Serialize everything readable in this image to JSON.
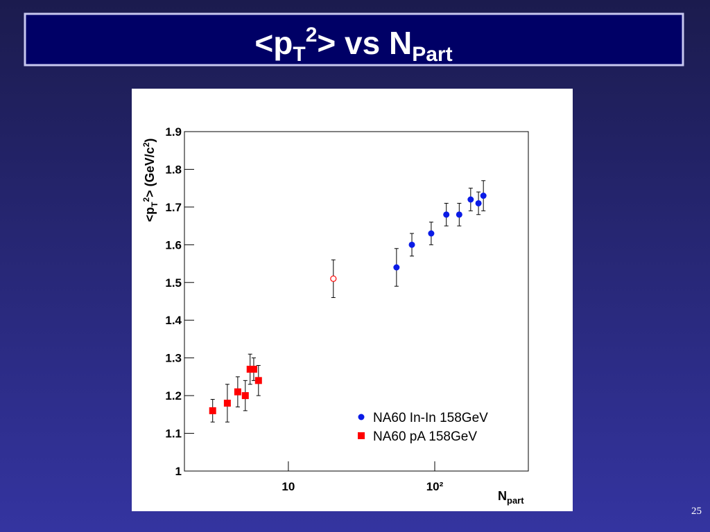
{
  "slide": {
    "title_parts": [
      "<p",
      "T",
      "2",
      "> vs N",
      "Part"
    ],
    "page_number": "25"
  },
  "chart_data": {
    "type": "scatter",
    "y_label_parts": [
      "<p",
      "T",
      "2",
      "> (GeV/c",
      "2",
      ")"
    ],
    "x_label_parts": [
      "N",
      "part"
    ],
    "xlim": [
      1.95,
      436
    ],
    "log_x": true,
    "xticks": [
      10,
      {
        "value": 100,
        "label": "10²"
      }
    ],
    "ylim": [
      1,
      1.9
    ],
    "yticks": [
      1,
      1.1,
      1.2,
      1.3,
      1.4,
      1.5,
      1.6,
      1.7,
      1.8,
      1.9
    ],
    "legend": "lower right",
    "series": [
      {
        "name": "NA60 In-In 158GeV",
        "color": "#0a1be6",
        "marker": "circle",
        "x": [
          54.8,
          69.8,
          94.6,
          120,
          147,
          176,
          199,
          215
        ],
        "values": [
          1.54,
          1.6,
          1.63,
          1.68,
          1.68,
          1.72,
          1.71,
          1.73
        ],
        "errors": [
          0.05,
          0.03,
          0.03,
          0.03,
          0.03,
          0.03,
          0.03,
          0.04
        ]
      },
      {
        "name": "NA60 pA 158GeV",
        "color": "#ff0000",
        "marker": "square",
        "x": [
          3.04,
          3.83,
          4.51,
          5.08,
          5.48,
          5.8,
          6.25
        ],
        "values": [
          1.16,
          1.18,
          1.21,
          1.2,
          1.27,
          1.27,
          1.24
        ],
        "errors": [
          0.03,
          0.05,
          0.04,
          0.04,
          0.04,
          0.03,
          0.04
        ]
      },
      {
        "color": "#ff0000",
        "marker": "open-circle",
        "x": [
          20.3
        ],
        "values": [
          1.51
        ],
        "errors": [
          0.05
        ]
      }
    ]
  }
}
